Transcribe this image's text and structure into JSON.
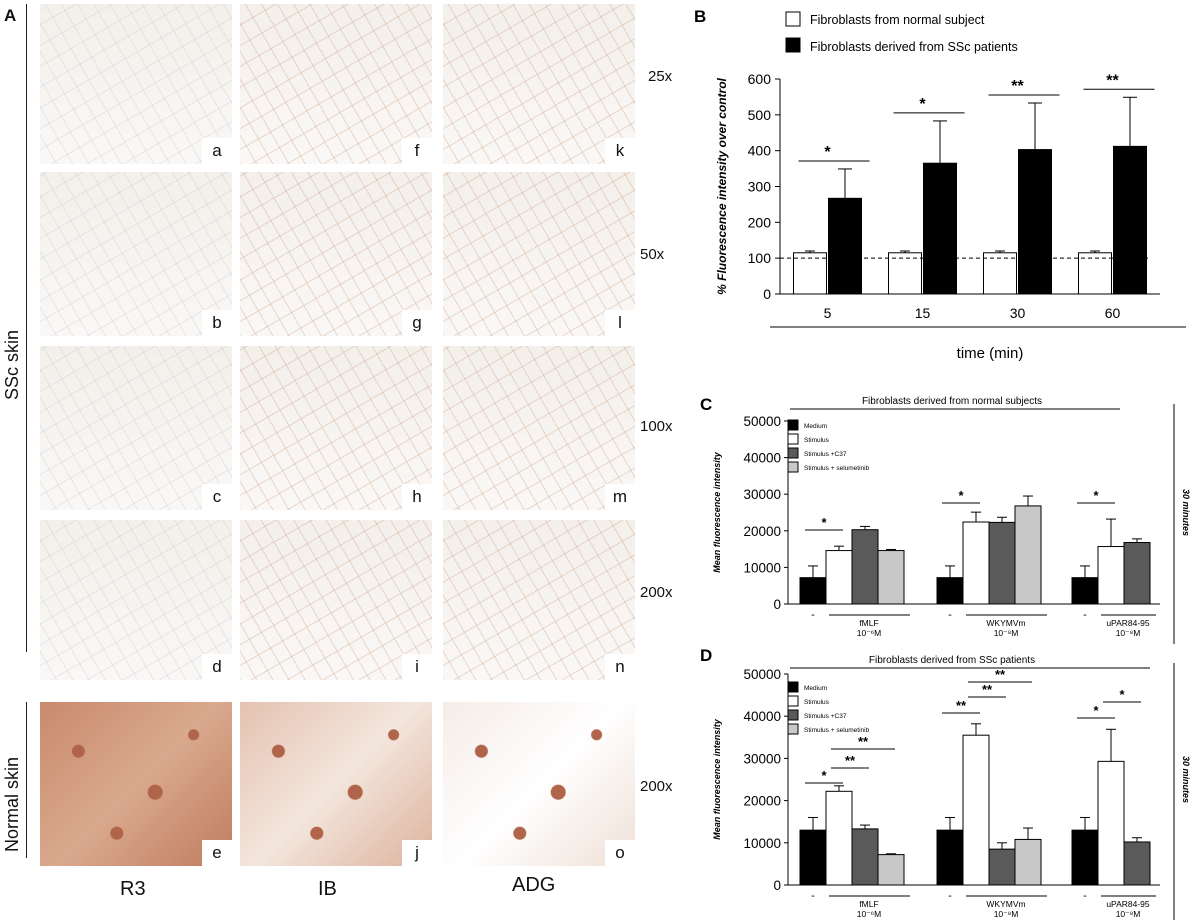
{
  "panel_a": {
    "letter": "A",
    "row_group_labels": [
      "SSc skin",
      "Normal skin"
    ],
    "magnifications": [
      "25x",
      "50x",
      "100x",
      "200x",
      "200x"
    ],
    "column_labels": [
      "R3",
      "IB",
      "ADG"
    ],
    "tile_letters": [
      [
        "a",
        "f",
        "k"
      ],
      [
        "b",
        "g",
        "l"
      ],
      [
        "c",
        "h",
        "m"
      ],
      [
        "d",
        "i",
        "n"
      ],
      [
        "e",
        "j",
        "o"
      ]
    ],
    "tile_color_tissue": "#f3efea",
    "tile_color_stain": "#c99a7e",
    "tile_color_cell": "#b0654a"
  },
  "chart_data": [
    {
      "panel": "B",
      "type": "bar",
      "legend": [
        "Fibroblasts from normal subject",
        "Fibroblasts derived from SSc patients"
      ],
      "categories": [
        "5",
        "15",
        "30",
        "60"
      ],
      "series": [
        {
          "name": "Fibroblasts from normal subject",
          "values": [
            115,
            115,
            115,
            115
          ],
          "errors": [
            5,
            5,
            5,
            5
          ],
          "color": "#ffffff"
        },
        {
          "name": "Fibroblasts derived from SSc patients",
          "values": [
            267,
            365,
            403,
            412
          ],
          "errors": [
            82,
            118,
            130,
            137
          ],
          "color": "#000000"
        }
      ],
      "significance": [
        "*",
        "*",
        "**",
        "**"
      ],
      "reference_line": 100,
      "xlabel": "time (min)",
      "ylabel": "% Fluorescence intensity over control",
      "yticks": [
        "0",
        "100",
        "200",
        "300",
        "400",
        "500",
        "600"
      ],
      "ylim": [
        0,
        600
      ]
    },
    {
      "panel": "C",
      "type": "bar",
      "title": "Fibroblasts derived from normal subjects",
      "side_label": "30 minutes",
      "ylabel": "Mean fluorescence intensity",
      "ylim": [
        0,
        50000
      ],
      "yticks": [
        "0",
        "10000",
        "20000",
        "30000",
        "40000",
        "50000"
      ],
      "legend": [
        "Medium",
        "Stimulus",
        "Stimulus +C37",
        "Stimulus + selumetinib"
      ],
      "colors": [
        "#000000",
        "#ffffff",
        "#5a5a5a",
        "#c8c8c8"
      ],
      "groups": [
        {
          "label": "fMLF",
          "conc": "10⁻⁶M",
          "values": [
            7200,
            14600,
            20300,
            14600
          ],
          "errors": [
            3200,
            1200,
            900,
            300
          ]
        },
        {
          "label": "WKYMVm",
          "conc": "10⁻⁸M",
          "values": [
            7200,
            22400,
            22300,
            26800
          ],
          "errors": [
            3200,
            2700,
            1400,
            2700
          ]
        },
        {
          "label": "uPAR84-95",
          "conc": "10⁻⁸M",
          "values": [
            7200,
            15700,
            16800
          ],
          "errors": [
            3200,
            7500,
            1000
          ]
        }
      ],
      "dash_label": "-",
      "significance": [
        {
          "group": 0,
          "text": "*"
        },
        {
          "group": 1,
          "text": "*"
        },
        {
          "group": 2,
          "text": "*"
        }
      ]
    },
    {
      "panel": "D",
      "type": "bar",
      "title": "Fibroblasts derived from SSc patients",
      "side_label": "30 minutes",
      "ylabel": "Mean fluorescence intensity",
      "ylim": [
        0,
        50000
      ],
      "yticks": [
        "0",
        "10000",
        "20000",
        "30000",
        "40000",
        "50000"
      ],
      "legend": [
        "Medium",
        "Stimulus",
        "Stimulus +C37",
        "Stimulus + selumetinib"
      ],
      "colors": [
        "#000000",
        "#ffffff",
        "#5a5a5a",
        "#c8c8c8"
      ],
      "groups": [
        {
          "label": "fMLF",
          "conc": "10⁻⁶M",
          "values": [
            13000,
            22200,
            13300,
            7200
          ],
          "errors": [
            3000,
            1300,
            900,
            200
          ]
        },
        {
          "label": "WKYMVm",
          "conc": "10⁻⁸M",
          "values": [
            13000,
            35500,
            8500,
            10800
          ],
          "errors": [
            3000,
            2700,
            1500,
            2700
          ]
        },
        {
          "label": "uPAR84-95",
          "conc": "10⁻⁸M",
          "values": [
            13000,
            29300,
            10200
          ],
          "errors": [
            3000,
            7600,
            1000
          ]
        }
      ],
      "dash_label": "-",
      "significance": [
        {
          "group": 0,
          "text": "*"
        },
        {
          "group": 0,
          "text": "**"
        },
        {
          "group": 0,
          "text": "**"
        },
        {
          "group": 1,
          "text": "**"
        },
        {
          "group": 1,
          "text": "**"
        },
        {
          "group": 1,
          "text": "**"
        },
        {
          "group": 2,
          "text": "*"
        },
        {
          "group": 2,
          "text": "*"
        }
      ]
    }
  ]
}
